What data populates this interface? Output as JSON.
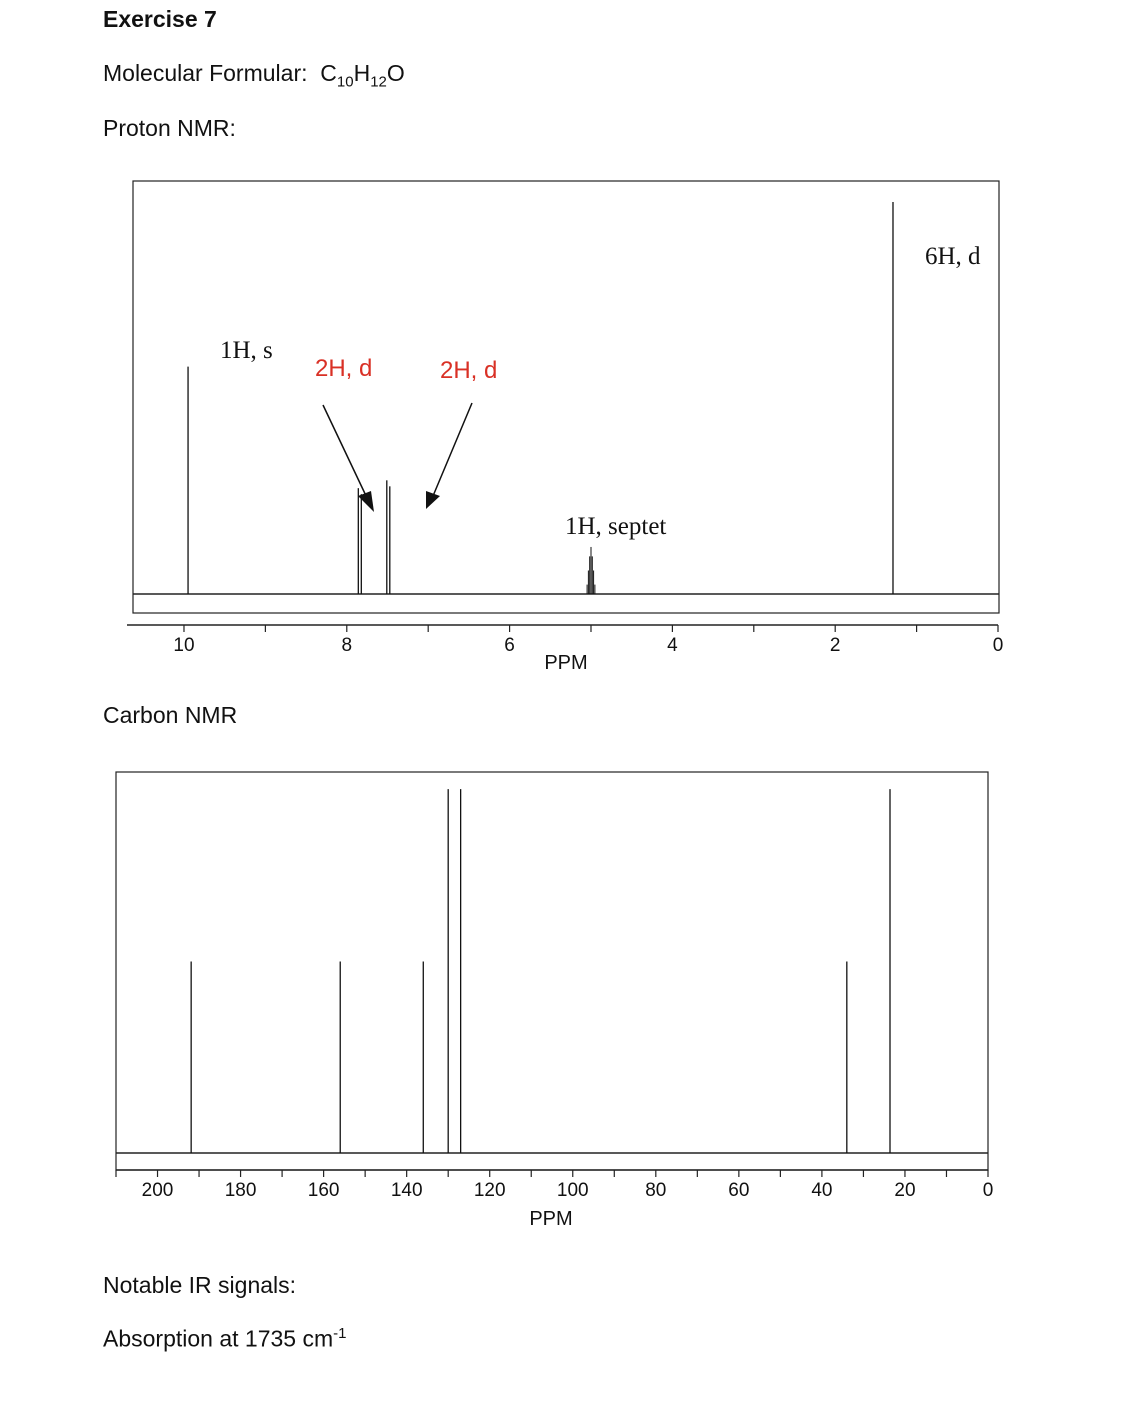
{
  "exercise_title": "Exercise 7",
  "molecular_formula": {
    "label": "Molecular Formular:",
    "parts": [
      {
        "text": "C",
        "sub": false
      },
      {
        "text": "10",
        "sub": true
      },
      {
        "text": "H",
        "sub": false
      },
      {
        "text": "12",
        "sub": true
      },
      {
        "text": "O",
        "sub": false
      }
    ]
  },
  "proton_heading": "Proton NMR:",
  "carbon_heading": "Carbon NMR",
  "ir_heading": "Notable IR signals:",
  "ir_absorption": {
    "text": "Absorption at 1735 cm",
    "sup": "-1"
  },
  "chart_data": [
    {
      "type": "bar",
      "name": "proton-nmr",
      "xlabel": "PPM",
      "xlim": [
        10.7,
        0
      ],
      "tick_labels": [
        10,
        8,
        6,
        4,
        2,
        0
      ],
      "peaks": [
        {
          "ppm": 9.95,
          "height": 0.58,
          "multiplet": "s"
        },
        {
          "ppm": 7.84,
          "height": 0.27,
          "multiplet": "d"
        },
        {
          "ppm": 7.49,
          "height": 0.29,
          "multiplet": "d"
        },
        {
          "ppm": 5.0,
          "height": 0.12,
          "multiplet": "septet"
        },
        {
          "ppm": 1.29,
          "height": 1.0,
          "multiplet": "d"
        }
      ],
      "annotations": [
        {
          "text": "1H, s",
          "style": "serif"
        },
        {
          "text": "2H, d",
          "style": "red"
        },
        {
          "text": "2H, d",
          "style": "red"
        },
        {
          "text": "1H, septet",
          "style": "serif"
        },
        {
          "text": "6H, d",
          "style": "serif"
        }
      ]
    },
    {
      "type": "bar",
      "name": "carbon-nmr",
      "xlabel": "PPM",
      "xlim": [
        210,
        0
      ],
      "tick_labels": [
        200,
        180,
        160,
        140,
        120,
        100,
        80,
        60,
        40,
        20,
        0
      ],
      "peaks": [
        {
          "ppm": 191.9,
          "height": 0.5
        },
        {
          "ppm": 156.0,
          "height": 0.5
        },
        {
          "ppm": 136.0,
          "height": 0.5
        },
        {
          "ppm": 130.0,
          "height": 0.95
        },
        {
          "ppm": 127.0,
          "height": 0.95
        },
        {
          "ppm": 34.0,
          "height": 0.5
        },
        {
          "ppm": 23.6,
          "height": 0.95
        }
      ]
    }
  ]
}
